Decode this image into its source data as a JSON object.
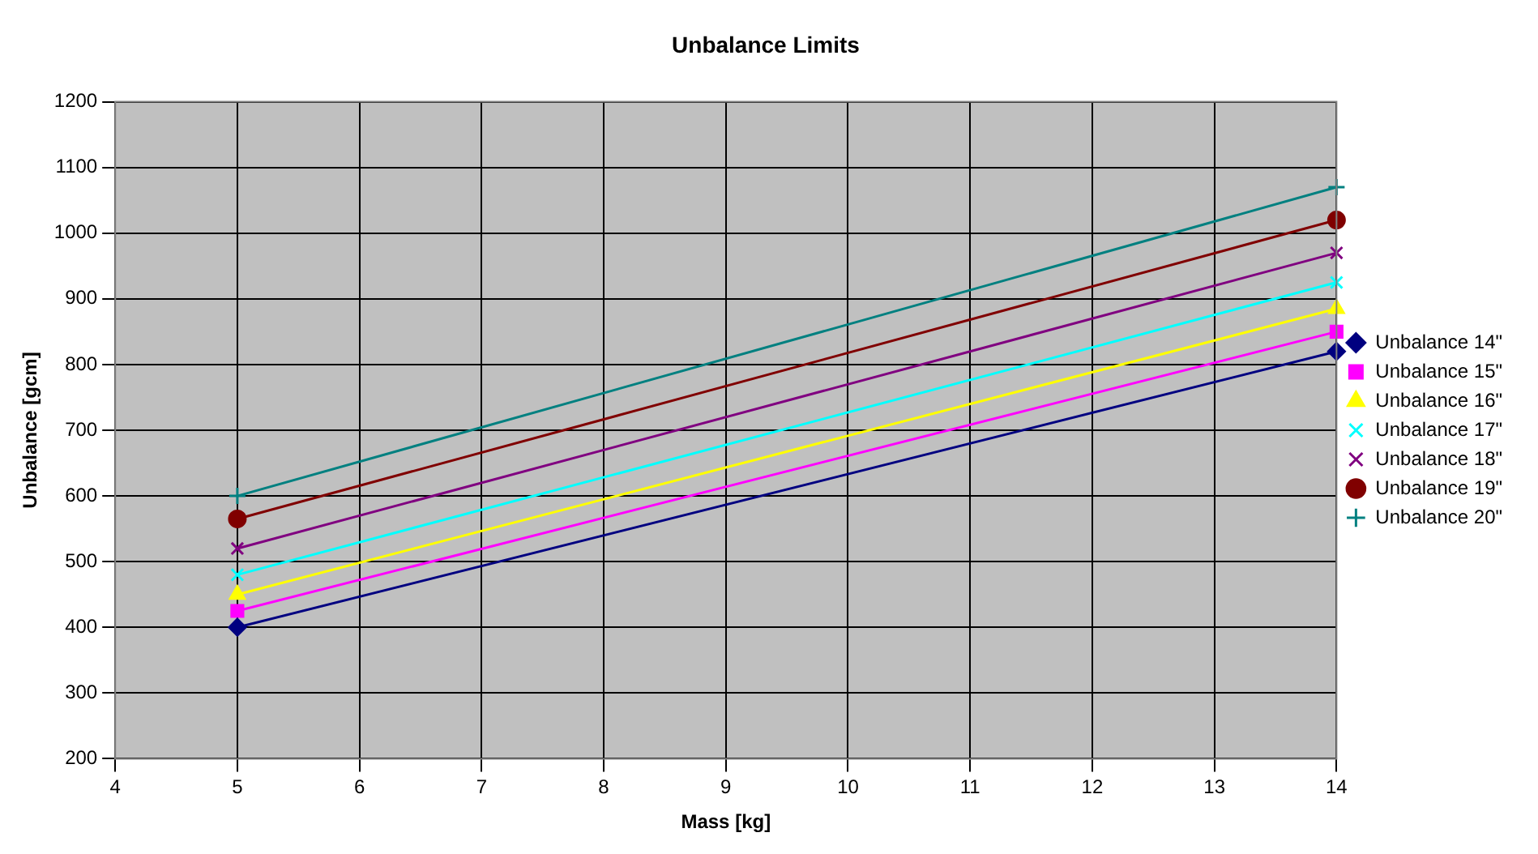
{
  "chart_data": {
    "type": "line",
    "title": "Unbalance Limits",
    "xlabel": "Mass [kg]",
    "ylabel": "Unbalance [gcm]",
    "x": [
      5,
      14
    ],
    "xlim": [
      4,
      14
    ],
    "xticks": [
      4,
      5,
      6,
      7,
      8,
      9,
      10,
      11,
      12,
      13,
      14
    ],
    "ylim": [
      200,
      1200
    ],
    "yticks": [
      200,
      300,
      400,
      500,
      600,
      700,
      800,
      900,
      1000,
      1100,
      1200
    ],
    "grid": true,
    "legend": "right",
    "line_style": "solid",
    "series": [
      {
        "name": "Unbalance 14\"",
        "color": "#000080",
        "marker": "diamond",
        "values": [
          400,
          820
        ]
      },
      {
        "name": "Unbalance 15\"",
        "color": "#ff00ff",
        "marker": "square",
        "values": [
          425,
          850
        ]
      },
      {
        "name": "Unbalance 16\"",
        "color": "#ffff00",
        "marker": "triangle",
        "values": [
          450,
          885
        ]
      },
      {
        "name": "Unbalance 17\"",
        "color": "#00ffff",
        "marker": "cross",
        "values": [
          480,
          925
        ]
      },
      {
        "name": "Unbalance 18\"",
        "color": "#800080",
        "marker": "cross",
        "values": [
          520,
          970
        ]
      },
      {
        "name": "Unbalance 19\"",
        "color": "#800000",
        "marker": "circle",
        "values": [
          565,
          1020
        ]
      },
      {
        "name": "Unbalance 20\"",
        "color": "#008080",
        "marker": "plus",
        "values": [
          600,
          1070
        ]
      }
    ]
  }
}
